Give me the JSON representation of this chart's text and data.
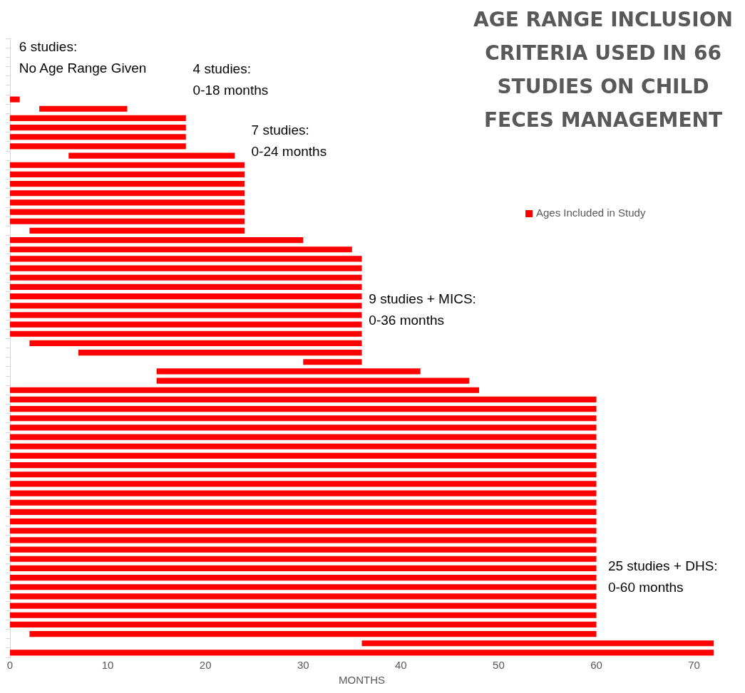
{
  "chart_data": {
    "type": "bar",
    "orientation": "horizontal",
    "title": "AGE RANGE INCLUSION CRITERIA USED IN 66 STUDIES ON CHILD FECES MANAGEMENT",
    "xlabel": "MONTHS",
    "categories": [
      null,
      null,
      null,
      null,
      null,
      null,
      null,
      null,
      null,
      null,
      null,
      null,
      null,
      null,
      null,
      null,
      null,
      null,
      null,
      null,
      null,
      null,
      null,
      null,
      null,
      null,
      null,
      null,
      null,
      null,
      null,
      null,
      null,
      null,
      null,
      null,
      null,
      null,
      null,
      null,
      null,
      null,
      null,
      null,
      null,
      null,
      null,
      null,
      null,
      null,
      null,
      null,
      null,
      null,
      null,
      null,
      null,
      null,
      null,
      null,
      null,
      null,
      null,
      null,
      null,
      null
    ],
    "series": [
      {
        "name": "Ages Included in Study",
        "color": "#ff0000",
        "base": [
          null,
          null,
          null,
          null,
          null,
          null,
          0,
          3,
          0,
          0,
          0,
          0,
          6,
          0,
          0,
          0,
          0,
          0,
          0,
          0,
          2,
          0,
          0,
          0,
          0,
          0,
          0,
          0,
          0,
          0,
          0,
          0,
          2,
          7,
          30,
          15,
          15,
          0,
          0,
          0,
          0,
          0,
          0,
          0,
          0,
          0,
          0,
          0,
          0,
          0,
          0,
          0,
          0,
          0,
          0,
          0,
          0,
          0,
          0,
          0,
          0,
          0,
          0,
          2,
          36,
          0
        ],
        "values": [
          null,
          null,
          null,
          null,
          null,
          null,
          1,
          9,
          18,
          18,
          18,
          18,
          17,
          24,
          24,
          24,
          24,
          24,
          24,
          24,
          22,
          30,
          35,
          36,
          36,
          36,
          36,
          36,
          36,
          36,
          36,
          36,
          34,
          29,
          6,
          27,
          32,
          48,
          60,
          60,
          60,
          60,
          60,
          60,
          60,
          60,
          60,
          60,
          60,
          60,
          60,
          60,
          60,
          60,
          60,
          60,
          60,
          60,
          60,
          60,
          60,
          60,
          60,
          58,
          36,
          72
        ]
      }
    ],
    "xlim": [
      0,
      72
    ],
    "xticks": [
      0,
      10,
      20,
      30,
      40,
      50,
      60,
      70
    ],
    "tick_labels": "x",
    "grid": false,
    "legend": "top right",
    "annotations": [
      "6 studies:\nNo Age Range Given",
      "4 studies:\n0-18 months",
      "7 studies:\n0-24 months",
      "9 studies + MICS:\n0-36 months",
      "25 studies + DHS:\n0-60 months"
    ]
  }
}
